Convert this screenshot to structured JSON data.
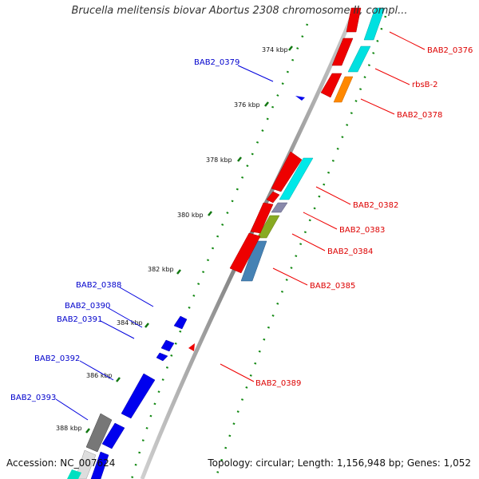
{
  "title": "Brucella melitensis biovar Abortus 2308 chromosome II, compl...",
  "footer": {
    "accession": "Accession: NC_007624",
    "topology": "Topology: circular; Length: 1,156,948 bp; Genes: 1,052"
  },
  "colors": {
    "forward_gene": "#ff0000",
    "reverse_gene": "#0000ff",
    "forward_label": "#dd0000",
    "reverse_label": "#0000cc",
    "cds_cyan": "#00e8e8",
    "cds_orange": "#ff8800",
    "cds_olive": "#88aa22",
    "cds_steelblue": "#4682b4",
    "cds_gray": "#888888",
    "tick_green": "#117711",
    "backbone": "#888888"
  },
  "ticks": [
    "374 kbp",
    "376 kbp",
    "378 kbp",
    "380 kbp",
    "382 kbp",
    "384 kbp",
    "386 kbp",
    "388 kbp"
  ],
  "forward_labels": [
    "BAB2_0376",
    "rbsB-2",
    "BAB2_0378",
    "BAB2_0382",
    "BAB2_0383",
    "BAB2_0384",
    "BAB2_0385",
    "BAB2_0389"
  ],
  "reverse_labels": [
    "BAB2_0379",
    "BAB2_0388",
    "BAB2_0390",
    "BAB2_0391",
    "BAB2_0392",
    "BAB2_0393"
  ]
}
